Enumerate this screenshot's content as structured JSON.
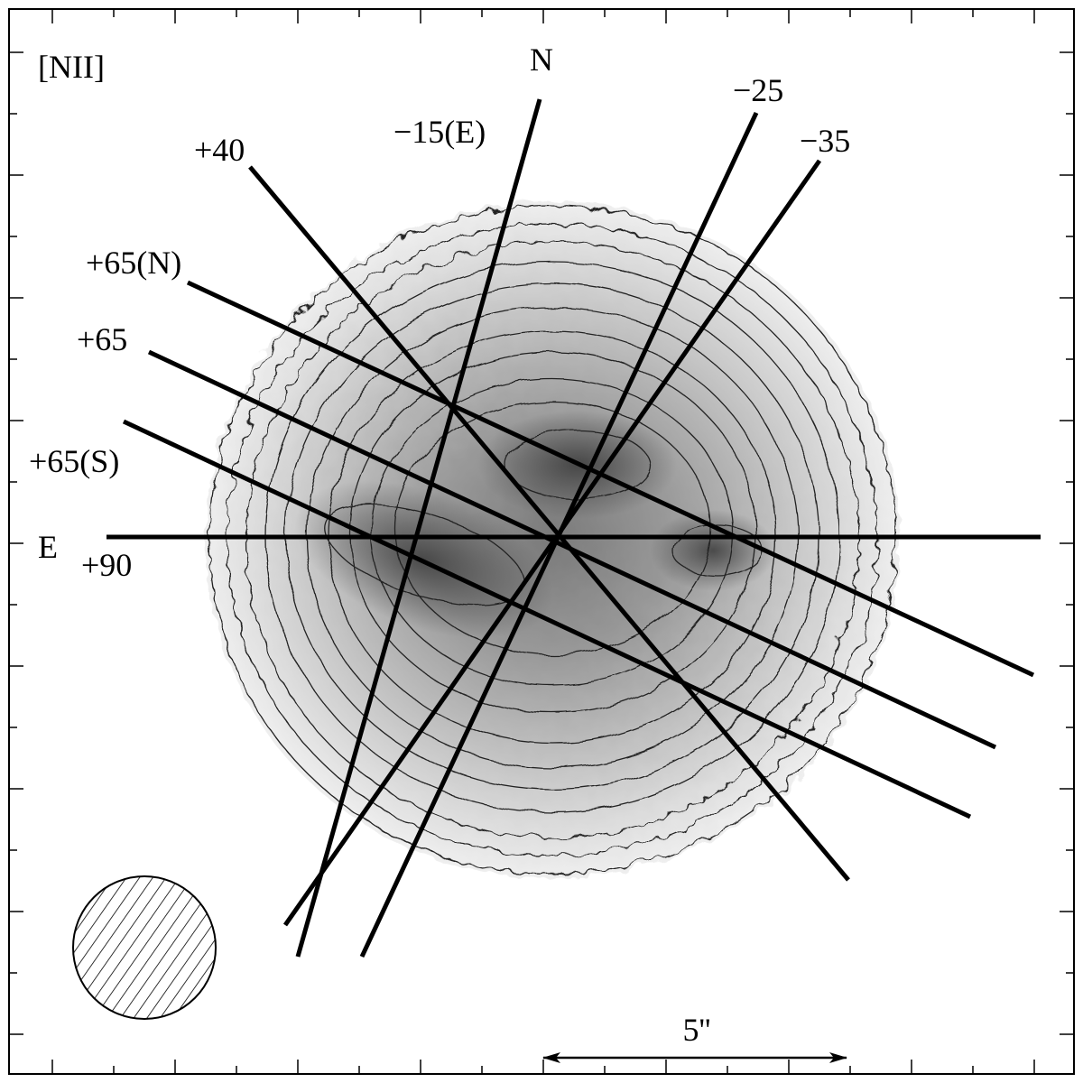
{
  "title": "[NII]",
  "compass": {
    "north": "N",
    "east": "E"
  },
  "slits": [
    {
      "label": "+40"
    },
    {
      "label": "−15(E)"
    },
    {
      "label": "−25"
    },
    {
      "label": "−35"
    },
    {
      "label": "+65(N)"
    },
    {
      "label": "+65"
    },
    {
      "label": "+65(S)"
    },
    {
      "label": "+90"
    }
  ],
  "scale_bar": {
    "label": "5''"
  }
}
